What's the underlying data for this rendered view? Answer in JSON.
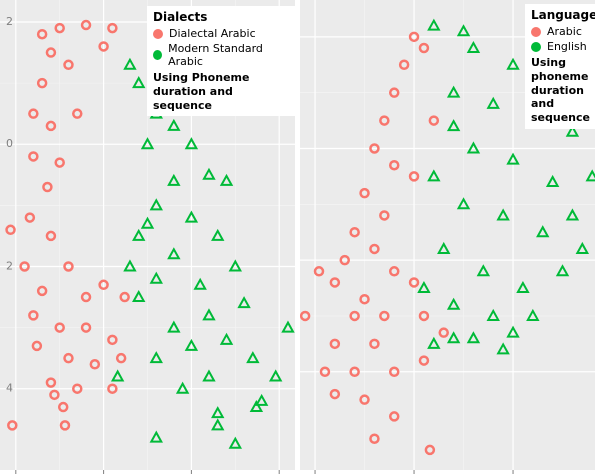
{
  "chart_data": [
    {
      "type": "scatter",
      "legend_title": "Dialects",
      "annotation": "Using Phoneme duration and sequence",
      "xlim": [
        -5.9,
        10.9
      ],
      "ylim": [
        2.36,
        -5.33
      ],
      "xticks": [
        -5,
        0,
        5,
        10
      ],
      "yticks": [
        2,
        0,
        {
          "value": -2,
          "label": "2"
        },
        {
          "value": -4,
          "label": "4"
        }
      ],
      "grid": true,
      "series": [
        {
          "name": "Dialectal Arabic",
          "color": "#f8766d",
          "marker": "circle",
          "x": [
            -3.5,
            -2.5,
            -1,
            0.5,
            -3,
            -2,
            0,
            -3.5,
            -4,
            -3,
            -4,
            -3.2,
            -4.2,
            -3,
            -4.5,
            -2,
            -3.5,
            -1,
            0,
            -4,
            -2.5,
            -1,
            0.5,
            -3.8,
            -2,
            -0.5,
            1,
            -3,
            -1.5,
            0.5,
            -2.3,
            -2.2,
            -5.2,
            -5.3,
            -1.5,
            -2.5,
            1.2,
            -2.8
          ],
          "values": [
            1.8,
            1.9,
            1.95,
            1.9,
            1.5,
            1.3,
            1.6,
            1,
            0.5,
            0.3,
            -0.2,
            -0.7,
            -1.2,
            -1.5,
            -2,
            -2,
            -2.4,
            -2.5,
            -2.3,
            -2.8,
            -3,
            -3,
            -3.2,
            -3.3,
            -3.5,
            -3.6,
            -3.5,
            -3.9,
            -4,
            -4,
            -4.3,
            -4.6,
            -4.6,
            -1.4,
            0.5,
            -0.3,
            -2.5,
            -4.1
          ]
        },
        {
          "name": "Modern Standard Arabic",
          "color": "#00ba38",
          "marker": "triangle",
          "x": [
            1.5,
            2,
            3,
            4,
            2.5,
            5,
            6,
            4,
            7,
            3,
            5,
            6.5,
            2,
            4,
            7.5,
            3,
            5.5,
            2,
            6,
            8,
            4,
            5,
            7,
            3,
            6,
            8.5,
            10.5,
            9.8,
            4.5,
            9,
            6.5,
            6.5,
            8.7,
            7.5,
            3,
            0.8,
            1.5,
            2.5
          ],
          "values": [
            1.3,
            1,
            0.5,
            0.3,
            0,
            0,
            -0.5,
            -0.6,
            -0.6,
            -1,
            -1.2,
            -1.5,
            -1.5,
            -1.8,
            -2,
            -2.2,
            -2.3,
            -2.5,
            -2.8,
            -2.6,
            -3,
            -3.3,
            -3.2,
            -3.5,
            -3.8,
            -3.5,
            -3,
            -3.8,
            -4,
            -4.2,
            -4.4,
            -4.6,
            -4.3,
            -4.9,
            -4.8,
            -3.8,
            -2,
            -1.3
          ]
        }
      ]
    },
    {
      "type": "scatter",
      "legend_title": "Languages",
      "annotation": "Using phoneme duration and sequence",
      "xlim": [
        -5.76,
        9.14
      ],
      "ylim": [
        2.66,
        -5.76
      ],
      "xticks": [
        -5,
        0,
        5
      ],
      "yticks": [
        2,
        0,
        -2,
        -4
      ],
      "grid": true,
      "series": [
        {
          "name": "Arabic",
          "color": "#f8766d",
          "marker": "circle",
          "x": [
            0,
            0.5,
            -0.5,
            -1,
            -1.5,
            -2,
            -1,
            -2.5,
            -1.5,
            -3,
            -2,
            -3.5,
            -1,
            0,
            -4,
            -2.5,
            -3,
            -1.5,
            0.5,
            -5.5,
            -4,
            -2,
            1.5,
            -4.5,
            -3,
            -1,
            0.5,
            -4,
            -2.5,
            -1,
            -2,
            0.8,
            -4.8,
            0,
            1
          ],
          "values": [
            2,
            1.8,
            1.5,
            1,
            0.5,
            0,
            -0.3,
            -0.8,
            -1.2,
            -1.5,
            -1.8,
            -2,
            -2.2,
            -2.4,
            -2.4,
            -2.7,
            -3,
            -3,
            -3,
            -3,
            -3.5,
            -3.5,
            -3.3,
            -4,
            -4,
            -4,
            -3.8,
            -4.4,
            -4.5,
            -4.8,
            -5.2,
            -5.4,
            -2.2,
            -0.5,
            0.5
          ]
        },
        {
          "name": "English",
          "color": "#00ba38",
          "marker": "triangle",
          "x": [
            1,
            2.5,
            4,
            3,
            5,
            7,
            8.5,
            2,
            4,
            6,
            8,
            9,
            3,
            5,
            7,
            1,
            2.5,
            4.5,
            6.5,
            8.5,
            1.5,
            3.5,
            5.5,
            7.5,
            2,
            4,
            6,
            3,
            1,
            5,
            4.5,
            2,
            0.5,
            2,
            8
          ],
          "values": [
            2.2,
            2.1,
            2.9,
            1.8,
            1.5,
            1.7,
            1,
            1,
            0.8,
            0.5,
            0.3,
            -0.5,
            0,
            -0.2,
            -0.6,
            -0.5,
            -1,
            -1.2,
            -1.5,
            -1.8,
            -1.8,
            -2.2,
            -2.5,
            -2.2,
            -2.8,
            -3,
            -3,
            -3.4,
            -3.5,
            -3.3,
            -3.6,
            -3.4,
            -2.5,
            0.4,
            -1.2
          ]
        }
      ]
    }
  ]
}
